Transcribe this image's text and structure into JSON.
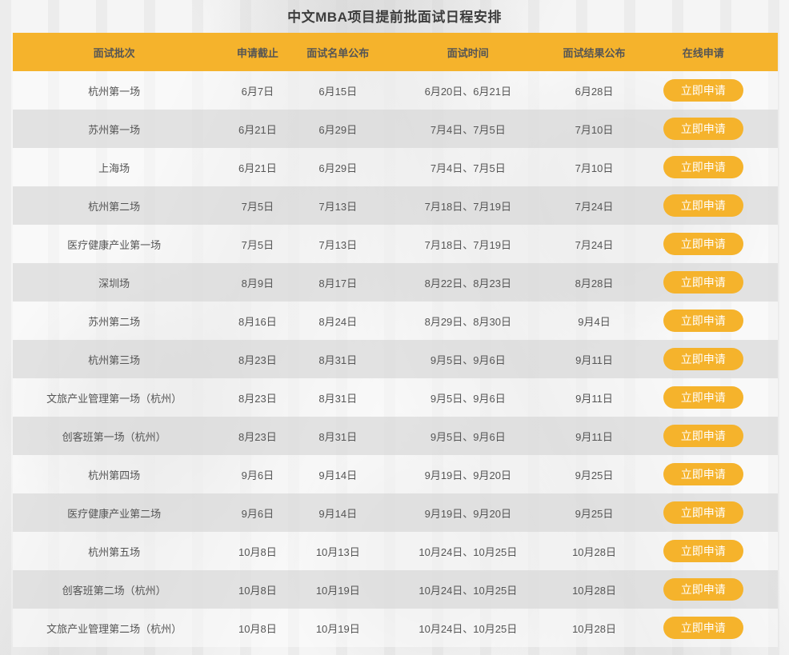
{
  "page": {
    "title": "中文MBA项目提前批面试日程安排"
  },
  "colors": {
    "accent_orange": "#F5B32C",
    "header_text": "#4C4C4C",
    "cell_text": "#555555",
    "row_even_bg": "#E7E7E7",
    "row_odd_bg": "#F4F4F4",
    "button_text": "#FFFFFF"
  },
  "table": {
    "headers": [
      "面试批次",
      "申请截止",
      "面试名单公布",
      "面试时间",
      "面试结果公布",
      "在线申请"
    ],
    "apply_label": "立即申请",
    "rows": [
      {
        "batch": "杭州第一场",
        "deadline": "6月7日",
        "list": "6月15日",
        "time": "6月20日、6月21日",
        "result": "6月28日"
      },
      {
        "batch": "苏州第一场",
        "deadline": "6月21日",
        "list": "6月29日",
        "time": "7月4日、7月5日",
        "result": "7月10日"
      },
      {
        "batch": "上海场",
        "deadline": "6月21日",
        "list": "6月29日",
        "time": "7月4日、7月5日",
        "result": "7月10日"
      },
      {
        "batch": "杭州第二场",
        "deadline": "7月5日",
        "list": "7月13日",
        "time": "7月18日、7月19日",
        "result": "7月24日"
      },
      {
        "batch": "医疗健康产业第一场",
        "deadline": "7月5日",
        "list": "7月13日",
        "time": "7月18日、7月19日",
        "result": "7月24日"
      },
      {
        "batch": "深圳场",
        "deadline": "8月9日",
        "list": "8月17日",
        "time": "8月22日、8月23日",
        "result": "8月28日"
      },
      {
        "batch": "苏州第二场",
        "deadline": "8月16日",
        "list": "8月24日",
        "time": "8月29日、8月30日",
        "result": "9月4日"
      },
      {
        "batch": "杭州第三场",
        "deadline": "8月23日",
        "list": "8月31日",
        "time": "9月5日、9月6日",
        "result": "9月11日"
      },
      {
        "batch": "文旅产业管理第一场（杭州）",
        "deadline": "8月23日",
        "list": "8月31日",
        "time": "9月5日、9月6日",
        "result": "9月11日"
      },
      {
        "batch": "创客班第一场（杭州）",
        "deadline": "8月23日",
        "list": "8月31日",
        "time": "9月5日、9月6日",
        "result": "9月11日"
      },
      {
        "batch": "杭州第四场",
        "deadline": "9月6日",
        "list": "9月14日",
        "time": "9月19日、9月20日",
        "result": "9月25日"
      },
      {
        "batch": "医疗健康产业第二场",
        "deadline": "9月6日",
        "list": "9月14日",
        "time": "9月19日、9月20日",
        "result": "9月25日"
      },
      {
        "batch": "杭州第五场",
        "deadline": "10月8日",
        "list": "10月13日",
        "time": "10月24日、10月25日",
        "result": "10月28日"
      },
      {
        "batch": "创客班第二场（杭州）",
        "deadline": "10月8日",
        "list": "10月19日",
        "time": "10月24日、10月25日",
        "result": "10月28日"
      },
      {
        "batch": "文旅产业管理第二场（杭州）",
        "deadline": "10月8日",
        "list": "10月19日",
        "time": "10月24日、10月25日",
        "result": "10月28日"
      }
    ]
  }
}
